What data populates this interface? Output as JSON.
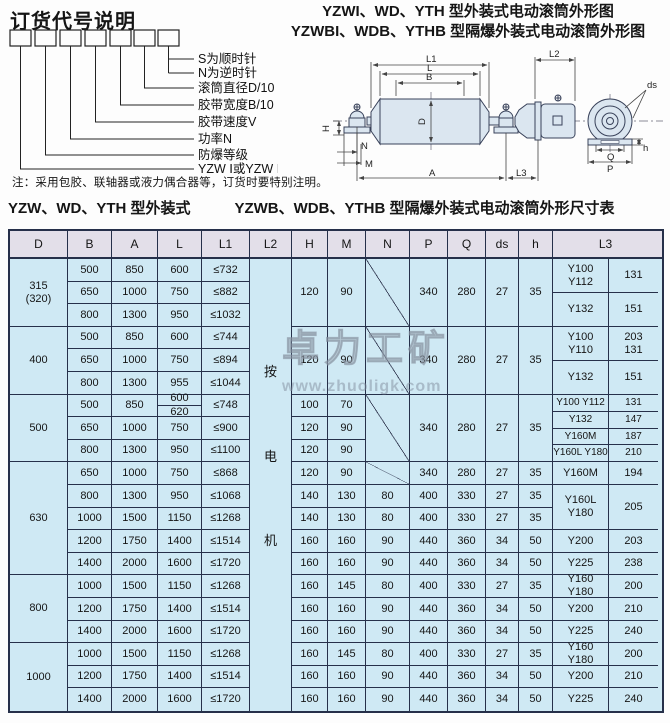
{
  "order_code": {
    "title": "订货代号说明",
    "labels": [
      "S为顺时针",
      "N为逆时针",
      "滚筒直径D/10",
      "胶带宽度B/10",
      "胶带速度V",
      "功率N",
      "防爆等级",
      "YZW Ⅰ或YZW Ⅱ"
    ],
    "note": "注：采用包胶、联轴器或液力偶合器等，订货时要特别注明。"
  },
  "drawing": {
    "title_line1": "YZWI、WD、YTH 型外装式电动滚筒外形图",
    "title_line2": "YZWBI、WDB、YTHB 型隔爆外装式电动滚筒外形图",
    "labels": {
      "L1": "L1",
      "L": "L",
      "B": "B",
      "L2": "L2",
      "D": "D",
      "H": "H",
      "N": "N",
      "M": "M",
      "A": "A",
      "L3": "L3",
      "Q": "Q",
      "P": "P",
      "h": "h",
      "ds": "ds"
    }
  },
  "section_title": {
    "left": "YZW、WD、YTH 型外装式",
    "right": "YZWB、WDB、YTHB 型隔爆外装式电动滚筒外形尺寸表"
  },
  "watermark": {
    "brand": "卓力工矿",
    "url": "www.zhuoligk.com"
  },
  "colors": {
    "border": "#26304a",
    "header_bg": "#e3dfe9",
    "body_bg": "#cfe9f4"
  },
  "table": {
    "headers": [
      "D",
      "B",
      "A",
      "L",
      "L1",
      "L2",
      "H",
      "M",
      "N",
      "P",
      "Q",
      "ds",
      "h",
      "L3"
    ],
    "columns": [
      {
        "key": "D",
        "cells": [
          {
            "t": "315\n(320)",
            "rs": 3
          },
          {
            "t": "400",
            "rs": 3
          },
          {
            "t": "500",
            "rs": 3
          },
          {
            "t": "630",
            "rs": 5
          },
          {
            "t": "800",
            "rs": 3
          },
          {
            "t": "1000",
            "rs": 3
          }
        ]
      },
      {
        "key": "B",
        "cells": [
          {
            "t": "500"
          },
          {
            "t": "650"
          },
          {
            "t": "800"
          },
          {
            "t": "500"
          },
          {
            "t": "650"
          },
          {
            "t": "800"
          },
          {
            "t": "500"
          },
          {
            "t": "650"
          },
          {
            "t": "800"
          },
          {
            "t": "650"
          },
          {
            "t": "800"
          },
          {
            "t": "1000"
          },
          {
            "t": "1200"
          },
          {
            "t": "1400"
          },
          {
            "t": "1000"
          },
          {
            "t": "1200"
          },
          {
            "t": "1400"
          },
          {
            "t": "1000"
          },
          {
            "t": "1200"
          },
          {
            "t": "1400"
          }
        ]
      },
      {
        "key": "A",
        "cells": [
          {
            "t": "850"
          },
          {
            "t": "1000"
          },
          {
            "t": "1300"
          },
          {
            "t": "850"
          },
          {
            "t": "1000"
          },
          {
            "t": "1300"
          },
          {
            "t": "850"
          },
          {
            "t": "1000"
          },
          {
            "t": "1300"
          },
          {
            "t": "1000"
          },
          {
            "t": "1300"
          },
          {
            "t": "1500"
          },
          {
            "t": "1750"
          },
          {
            "t": "2000"
          },
          {
            "t": "1500"
          },
          {
            "t": "1750"
          },
          {
            "t": "2000"
          },
          {
            "t": "1500"
          },
          {
            "t": "1750"
          },
          {
            "t": "2000"
          }
        ]
      },
      {
        "key": "L",
        "cells": [
          {
            "t": "600"
          },
          {
            "t": "750"
          },
          {
            "t": "950"
          },
          {
            "t": "600"
          },
          {
            "t": "750"
          },
          {
            "t": "955"
          },
          {
            "t": "600|620",
            "split": true
          },
          {
            "t": "750"
          },
          {
            "t": "950"
          },
          {
            "t": "750"
          },
          {
            "t": "950"
          },
          {
            "t": "1150"
          },
          {
            "t": "1400"
          },
          {
            "t": "1600"
          },
          {
            "t": "1150"
          },
          {
            "t": "1400"
          },
          {
            "t": "1600"
          },
          {
            "t": "1150"
          },
          {
            "t": "1400"
          },
          {
            "t": "1600"
          }
        ]
      },
      {
        "key": "L1",
        "cells": [
          {
            "t": "≤732"
          },
          {
            "t": "≤882"
          },
          {
            "t": "≤1032"
          },
          {
            "t": "≤744"
          },
          {
            "t": "≤894"
          },
          {
            "t": "≤1044"
          },
          {
            "t": "≤748"
          },
          {
            "t": "≤900"
          },
          {
            "t": "≤1100"
          },
          {
            "t": "≤868"
          },
          {
            "t": "≤1068"
          },
          {
            "t": "≤1268"
          },
          {
            "t": "≤1514"
          },
          {
            "t": "≤1720"
          },
          {
            "t": "≤1268"
          },
          {
            "t": "≤1514"
          },
          {
            "t": "≤1720"
          },
          {
            "t": "≤1268"
          },
          {
            "t": "≤1514"
          },
          {
            "t": "≤1720"
          }
        ]
      },
      {
        "key": "L2",
        "cells": [
          {
            "t": "按电机",
            "rs": 20,
            "vert": true
          }
        ]
      },
      {
        "key": "H",
        "cells": [
          {
            "t": "120",
            "rs": 3
          },
          {
            "t": "120",
            "rs": 3
          },
          {
            "t": "100"
          },
          {
            "t": "120"
          },
          {
            "t": "120"
          },
          {
            "t": "120"
          },
          {
            "t": "140"
          },
          {
            "t": "140"
          },
          {
            "t": "160"
          },
          {
            "t": "160"
          },
          {
            "t": "160"
          },
          {
            "t": "160"
          },
          {
            "t": "160"
          },
          {
            "t": "160"
          },
          {
            "t": "160"
          },
          {
            "t": "160"
          }
        ]
      },
      {
        "key": "M",
        "cells": [
          {
            "t": "90",
            "rs": 3
          },
          {
            "t": "90",
            "rs": 3
          },
          {
            "t": "70"
          },
          {
            "t": "90"
          },
          {
            "t": "90"
          },
          {
            "t": "90"
          },
          {
            "t": "130"
          },
          {
            "t": "130"
          },
          {
            "t": "160"
          },
          {
            "t": "160"
          },
          {
            "t": "145"
          },
          {
            "t": "160"
          },
          {
            "t": "160"
          },
          {
            "t": "145"
          },
          {
            "t": "160"
          },
          {
            "t": "160"
          }
        ]
      },
      {
        "key": "N",
        "cells": [
          {
            "t": "",
            "rs": 3,
            "slash": true
          },
          {
            "t": "",
            "rs": 3,
            "slash": true
          },
          {
            "t": "",
            "rs": 3,
            "slash": true
          },
          {
            "t": "",
            "slash": true
          },
          {
            "t": "80"
          },
          {
            "t": "80"
          },
          {
            "t": "90"
          },
          {
            "t": "90"
          },
          {
            "t": "80"
          },
          {
            "t": "90"
          },
          {
            "t": "90"
          },
          {
            "t": "80"
          },
          {
            "t": "90"
          },
          {
            "t": "90"
          }
        ]
      },
      {
        "key": "P",
        "cells": [
          {
            "t": "340",
            "rs": 3
          },
          {
            "t": "340",
            "rs": 3
          },
          {
            "t": "340",
            "rs": 3
          },
          {
            "t": "340"
          },
          {
            "t": "400"
          },
          {
            "t": "400"
          },
          {
            "t": "440"
          },
          {
            "t": "440"
          },
          {
            "t": "400"
          },
          {
            "t": "440"
          },
          {
            "t": "440"
          },
          {
            "t": "400"
          },
          {
            "t": "440"
          },
          {
            "t": "440"
          }
        ]
      },
      {
        "key": "Q",
        "cells": [
          {
            "t": "280",
            "rs": 3
          },
          {
            "t": "280",
            "rs": 3
          },
          {
            "t": "280",
            "rs": 3
          },
          {
            "t": "280"
          },
          {
            "t": "330"
          },
          {
            "t": "330"
          },
          {
            "t": "360"
          },
          {
            "t": "360"
          },
          {
            "t": "330"
          },
          {
            "t": "360"
          },
          {
            "t": "360"
          },
          {
            "t": "330"
          },
          {
            "t": "360"
          },
          {
            "t": "360"
          }
        ]
      },
      {
        "key": "ds",
        "cells": [
          {
            "t": "27",
            "rs": 3
          },
          {
            "t": "27",
            "rs": 3
          },
          {
            "t": "27",
            "rs": 3
          },
          {
            "t": "27"
          },
          {
            "t": "27"
          },
          {
            "t": "27"
          },
          {
            "t": "34"
          },
          {
            "t": "34"
          },
          {
            "t": "27"
          },
          {
            "t": "34"
          },
          {
            "t": "34"
          },
          {
            "t": "27"
          },
          {
            "t": "34"
          },
          {
            "t": "34"
          }
        ]
      },
      {
        "key": "h",
        "cells": [
          {
            "t": "35",
            "rs": 3
          },
          {
            "t": "35",
            "rs": 3
          },
          {
            "t": "35",
            "rs": 3
          },
          {
            "t": "35"
          },
          {
            "t": "35"
          },
          {
            "t": "35"
          },
          {
            "t": "50"
          },
          {
            "t": "50"
          },
          {
            "t": "35"
          },
          {
            "t": "50"
          },
          {
            "t": "50"
          },
          {
            "t": "35"
          },
          {
            "t": "50"
          },
          {
            "t": "50"
          }
        ]
      },
      {
        "key": "L3a",
        "cells": [
          {
            "t": "Y100\nY112",
            "rs": 1.5
          },
          {
            "t": "Y132",
            "rs": 1.5
          },
          {
            "t": "Y100\nY110",
            "rs": 1.5
          },
          {
            "t": "Y132",
            "rs": 1.5
          },
          {
            "t": "Y100 Y112",
            "rs": 0.75
          },
          {
            "t": "Y132",
            "rs": 0.75
          },
          {
            "t": "Y160M",
            "rs": 0.75
          },
          {
            "t": "Y160L Y180",
            "rs": 0.75
          },
          {
            "t": "Y160M"
          },
          {
            "t": "Y160L\nY180",
            "rs": 2
          },
          {
            "t": "Y200"
          },
          {
            "t": "Y225"
          },
          {
            "t": "Y160\nY180"
          },
          {
            "t": "Y200"
          },
          {
            "t": "Y225"
          },
          {
            "t": "Y160\nY180"
          },
          {
            "t": "Y200"
          },
          {
            "t": "Y225"
          }
        ]
      },
      {
        "key": "L3b",
        "cells": [
          {
            "t": "131",
            "rs": 1.5
          },
          {
            "t": "151",
            "rs": 1.5
          },
          {
            "t": "203\n131",
            "rs": 1.5
          },
          {
            "t": "151",
            "rs": 1.5
          },
          {
            "t": "131",
            "rs": 0.75
          },
          {
            "t": "147",
            "rs": 0.75
          },
          {
            "t": "187",
            "rs": 0.75
          },
          {
            "t": "210",
            "rs": 0.75
          },
          {
            "t": "194"
          },
          {
            "t": "205",
            "rs": 2
          },
          {
            "t": "203"
          },
          {
            "t": "238"
          },
          {
            "t": "200"
          },
          {
            "t": "210"
          },
          {
            "t": "240"
          },
          {
            "t": "200"
          },
          {
            "t": "210"
          },
          {
            "t": "240"
          }
        ]
      }
    ]
  }
}
